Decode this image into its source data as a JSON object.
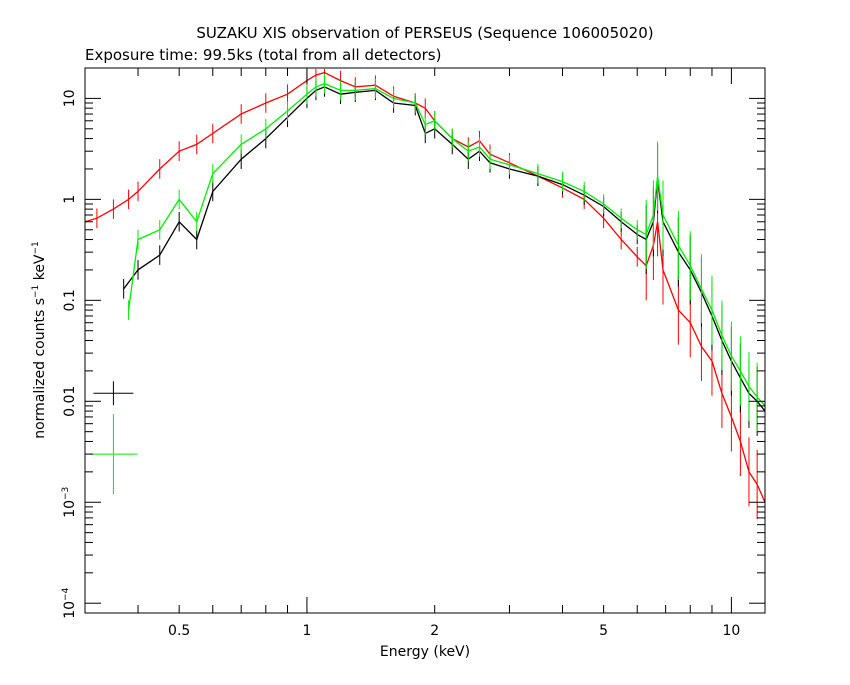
{
  "chart_data": {
    "type": "scatter",
    "title": "SUZAKU XIS observation of PERSEUS (Sequence 106005020)",
    "subtitle": "Exposure time: 99.5ks (total from all detectors)",
    "xlabel": "Energy (keV)",
    "ylabel": {
      "base": "normalized counts s",
      "exp1": "−1",
      "mid": " keV",
      "exp2": "−1"
    },
    "x_scale": "log",
    "y_scale": "log",
    "xlim": [
      0.3,
      12
    ],
    "ylim": [
      8e-05,
      20
    ],
    "x_ticks": [
      {
        "value": 0.5,
        "label": "0.5"
      },
      {
        "value": 1,
        "label": "1"
      },
      {
        "value": 2,
        "label": "2"
      },
      {
        "value": 5,
        "label": "5"
      },
      {
        "value": 10,
        "label": "10"
      }
    ],
    "y_ticks": [
      {
        "value": 10,
        "label": "10"
      },
      {
        "value": 1,
        "label": "1"
      },
      {
        "value": 0.1,
        "label": "0.1"
      },
      {
        "value": 0.01,
        "label": "0.01"
      },
      {
        "value": 0.001,
        "base": "10",
        "exp": "−3"
      },
      {
        "value": 0.0001,
        "base": "10",
        "exp": "−4"
      }
    ],
    "grid": false,
    "legend": "none",
    "series": [
      {
        "color": "#ff0000",
        "x": [
          0.3,
          0.32,
          0.35,
          0.38,
          0.4,
          0.45,
          0.5,
          0.55,
          0.6,
          0.7,
          0.8,
          0.9,
          1.0,
          1.05,
          1.1,
          1.2,
          1.3,
          1.45,
          1.6,
          1.8,
          1.9,
          2.0,
          2.2,
          2.4,
          2.55,
          2.7,
          3.0,
          3.5,
          4.0,
          4.5,
          5.0,
          5.5,
          6.0,
          6.3,
          6.55,
          6.7,
          6.9,
          7.5,
          8.0,
          8.5,
          9.0,
          9.5,
          10.0,
          10.5,
          11.0,
          11.5,
          12.0
        ],
        "y": [
          0.6,
          0.65,
          0.8,
          1.0,
          1.2,
          2.0,
          3.0,
          3.5,
          4.5,
          7.0,
          9.0,
          11.0,
          15.0,
          17.0,
          18.0,
          15.0,
          13.0,
          13.5,
          10.5,
          9.0,
          8.0,
          6.0,
          4.0,
          3.3,
          3.8,
          2.8,
          2.3,
          1.7,
          1.3,
          1.0,
          0.65,
          0.4,
          0.27,
          0.22,
          0.35,
          0.6,
          0.2,
          0.08,
          0.06,
          0.035,
          0.025,
          0.012,
          0.007,
          0.004,
          0.002,
          0.0015,
          0.001
        ]
      },
      {
        "color": "#000000",
        "x": [
          0.37,
          0.4,
          0.45,
          0.5,
          0.55,
          0.6,
          0.7,
          0.8,
          0.9,
          1.0,
          1.05,
          1.1,
          1.2,
          1.3,
          1.45,
          1.6,
          1.8,
          1.9,
          2.0,
          2.2,
          2.4,
          2.55,
          2.7,
          3.0,
          3.5,
          4.0,
          4.5,
          5.0,
          5.5,
          6.0,
          6.3,
          6.55,
          6.7,
          6.9,
          7.5,
          8.0,
          8.5,
          9.0,
          9.5,
          10.0,
          10.5,
          11.0,
          11.5,
          12.0
        ],
        "y": [
          0.13,
          0.2,
          0.28,
          0.6,
          0.4,
          1.2,
          2.5,
          4.0,
          6.5,
          10.0,
          12.0,
          13.0,
          11.0,
          11.5,
          12.0,
          9.0,
          8.5,
          4.5,
          5.0,
          3.5,
          2.5,
          3.0,
          2.3,
          2.0,
          1.7,
          1.4,
          1.1,
          0.85,
          0.6,
          0.45,
          0.4,
          0.6,
          1.6,
          0.6,
          0.3,
          0.2,
          0.12,
          0.07,
          0.04,
          0.025,
          0.017,
          0.012,
          0.01,
          0.008
        ]
      },
      {
        "color": "#00ee00",
        "x": [
          0.38,
          0.4,
          0.45,
          0.5,
          0.55,
          0.6,
          0.7,
          0.8,
          0.9,
          1.0,
          1.05,
          1.1,
          1.2,
          1.3,
          1.45,
          1.6,
          1.8,
          1.9,
          2.0,
          2.2,
          2.4,
          2.55,
          2.7,
          3.0,
          3.5,
          4.0,
          4.5,
          5.0,
          5.5,
          6.0,
          6.3,
          6.55,
          6.7,
          6.9,
          7.5,
          8.0,
          8.5,
          9.0,
          9.5,
          10.0,
          10.5,
          11.0,
          11.5,
          12.0
        ],
        "y": [
          0.08,
          0.4,
          0.5,
          1.0,
          0.6,
          1.8,
          3.5,
          5.0,
          7.5,
          11.0,
          13.0,
          14.0,
          12.0,
          12.0,
          12.5,
          10.0,
          9.0,
          5.5,
          6.0,
          4.0,
          3.0,
          3.3,
          2.5,
          2.2,
          1.8,
          1.5,
          1.2,
          0.9,
          0.65,
          0.5,
          0.45,
          0.7,
          1.7,
          0.7,
          0.35,
          0.22,
          0.13,
          0.08,
          0.045,
          0.028,
          0.02,
          0.014,
          0.011,
          0.009
        ]
      }
    ],
    "annotations": [
      {
        "color": "#000000",
        "x": 0.35,
        "y": 0.012
      },
      {
        "color": "#00ee00",
        "x": 0.35,
        "y": 0.003
      }
    ]
  }
}
